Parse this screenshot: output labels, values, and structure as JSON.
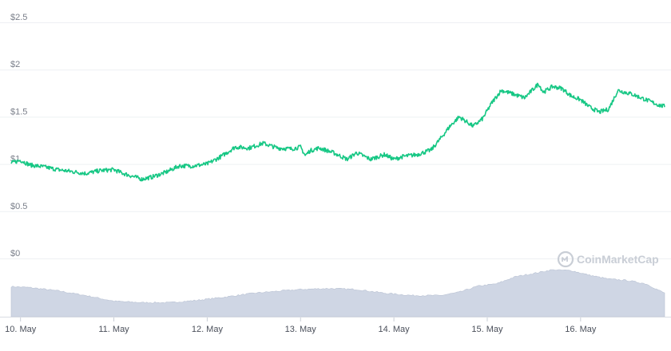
{
  "watermark": {
    "text": "CoinMarketCap",
    "icon": "coinmarketcap-logo-icon"
  },
  "colors": {
    "price_line": "#16c784",
    "volume_fill": "#cfd6e4",
    "volume_stroke": "#b9c2d3",
    "grid": "#eef0f3"
  },
  "chart_data": {
    "type": "line",
    "title": "",
    "xlabel": "",
    "ylabel": "",
    "grid": true,
    "ylim": [
      0,
      2.5
    ],
    "y_ticks": [
      {
        "value": 2.5,
        "label": "$2.5"
      },
      {
        "value": 2.0,
        "label": "$2"
      },
      {
        "value": 1.5,
        "label": "$1.5"
      },
      {
        "value": 1.0,
        "label": "$1"
      },
      {
        "value": 0.5,
        "label": "$0.5"
      },
      {
        "value": 0.0,
        "label": "$0"
      }
    ],
    "x_range": [
      9.9,
      16.9
    ],
    "x_ticks": [
      {
        "value": 10,
        "label": "10. May"
      },
      {
        "value": 11,
        "label": "11. May"
      },
      {
        "value": 12,
        "label": "12. May"
      },
      {
        "value": 13,
        "label": "13. May"
      },
      {
        "value": 14,
        "label": "14. May"
      },
      {
        "value": 15,
        "label": "15. May"
      },
      {
        "value": 16,
        "label": "16. May"
      }
    ],
    "price_series": {
      "x": [
        9.9,
        10.0,
        10.1,
        10.25,
        10.4,
        10.55,
        10.7,
        10.85,
        11.0,
        11.1,
        11.2,
        11.3,
        11.4,
        11.55,
        11.7,
        11.85,
        12.0,
        12.15,
        12.3,
        12.45,
        12.6,
        12.75,
        12.9,
        13.0,
        13.05,
        13.1,
        13.2,
        13.35,
        13.5,
        13.6,
        13.75,
        13.9,
        14.0,
        14.1,
        14.25,
        14.4,
        14.5,
        14.6,
        14.7,
        14.85,
        14.95,
        15.05,
        15.15,
        15.25,
        15.4,
        15.55,
        15.6,
        15.7,
        15.8,
        15.9,
        16.0,
        16.1,
        16.2,
        16.3,
        16.4,
        16.55,
        16.7,
        16.85,
        16.9
      ],
      "y": [
        1.01,
        1.04,
        0.99,
        0.97,
        0.94,
        0.92,
        0.9,
        0.93,
        0.94,
        0.9,
        0.87,
        0.84,
        0.86,
        0.91,
        0.98,
        0.98,
        1.0,
        1.08,
        1.18,
        1.17,
        1.22,
        1.17,
        1.16,
        1.18,
        1.09,
        1.14,
        1.17,
        1.12,
        1.05,
        1.12,
        1.05,
        1.1,
        1.05,
        1.08,
        1.1,
        1.15,
        1.27,
        1.4,
        1.5,
        1.4,
        1.48,
        1.65,
        1.78,
        1.75,
        1.7,
        1.85,
        1.76,
        1.82,
        1.8,
        1.72,
        1.68,
        1.6,
        1.55,
        1.58,
        1.78,
        1.74,
        1.68,
        1.62,
        1.61
      ]
    },
    "volume_series": {
      "x": [
        9.9,
        10.1,
        10.4,
        10.7,
        11.0,
        11.3,
        11.6,
        11.9,
        12.2,
        12.5,
        12.8,
        13.0,
        13.3,
        13.6,
        13.9,
        14.2,
        14.5,
        14.7,
        14.9,
        15.1,
        15.3,
        15.5,
        15.7,
        15.9,
        16.1,
        16.3,
        16.5,
        16.7,
        16.9
      ],
      "y": [
        0.64,
        0.62,
        0.55,
        0.45,
        0.33,
        0.3,
        0.3,
        0.35,
        0.42,
        0.5,
        0.55,
        0.58,
        0.6,
        0.58,
        0.5,
        0.45,
        0.45,
        0.52,
        0.65,
        0.7,
        0.85,
        0.92,
        1.0,
        0.98,
        0.88,
        0.8,
        0.77,
        0.7,
        0.5
      ]
    }
  }
}
